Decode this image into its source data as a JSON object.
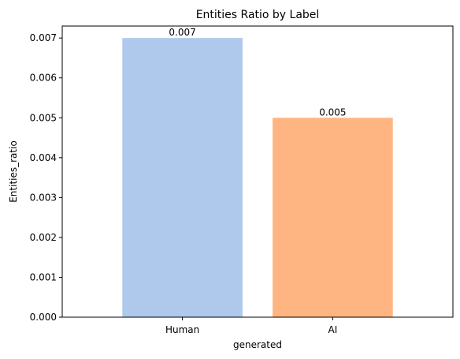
{
  "chart_data": {
    "type": "bar",
    "title": "Entities Ratio by Label",
    "xlabel": "generated",
    "ylabel": "Entities_ratio",
    "categories": [
      "Human",
      "AI"
    ],
    "values": [
      0.007,
      0.005
    ],
    "data_labels": [
      "0.007",
      "0.005"
    ],
    "colors": [
      "#aec9eb",
      "#ffb582"
    ],
    "ylim": [
      0,
      0.0073
    ],
    "yticks": [
      0.0,
      0.001,
      0.002,
      0.003,
      0.004,
      0.005,
      0.006,
      0.007
    ],
    "ytick_labels": [
      "0.000",
      "0.001",
      "0.002",
      "0.003",
      "0.004",
      "0.005",
      "0.006",
      "0.007"
    ],
    "grid": false,
    "legend": "none"
  }
}
